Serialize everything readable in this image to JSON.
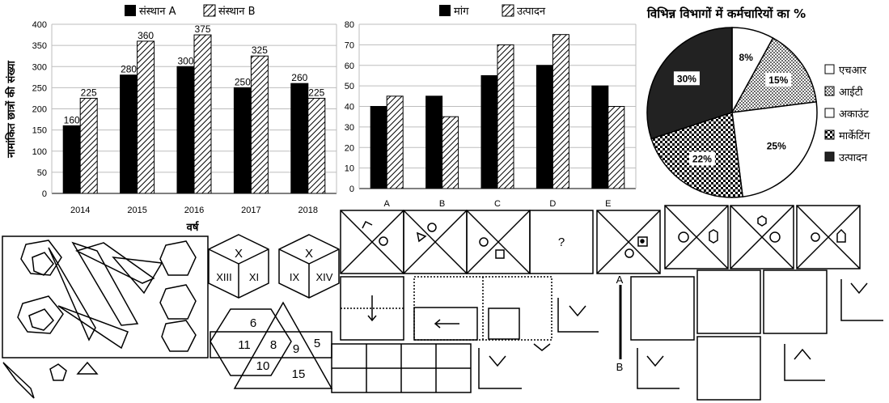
{
  "chart_data": [
    {
      "type": "bar",
      "categories": [
        "2014",
        "2015",
        "2016",
        "2017",
        "2018"
      ],
      "series": [
        {
          "name": "संस्थान A",
          "values": [
            160,
            280,
            300,
            250,
            260
          ]
        },
        {
          "name": "संस्थान B",
          "values": [
            225,
            360,
            375,
            325,
            225
          ]
        }
      ],
      "ylim": [
        0,
        400
      ],
      "yticks": [
        "0",
        "50",
        "100",
        "150",
        "200",
        "250",
        "300",
        "350",
        "400"
      ],
      "ylabel": "नामांकित छात्रों की संख्या",
      "xlabel": "वर्ष",
      "legend": "top"
    },
    {
      "type": "bar",
      "categories": [
        "A",
        "B",
        "C",
        "D",
        "E"
      ],
      "series": [
        {
          "name": "मांग",
          "values": [
            40,
            45,
            55,
            60,
            50
          ]
        },
        {
          "name": "उत्पादन",
          "values": [
            45,
            35,
            70,
            75,
            40
          ]
        }
      ],
      "ylim": [
        0,
        80
      ],
      "yticks": [
        "0",
        "10",
        "20",
        "30",
        "40",
        "50",
        "60",
        "70",
        "80"
      ],
      "legend": "top"
    },
    {
      "type": "pie",
      "title": "विभिन्न विभागों में कर्मचारियों का %",
      "slices": [
        {
          "label": "एचआर",
          "value": 8,
          "text": "8%"
        },
        {
          "label": "आईटी",
          "value": 15,
          "text": "15%"
        },
        {
          "label": "अकाउंट",
          "value": 25,
          "text": "25%"
        },
        {
          "label": "मार्केटिंग",
          "value": 22,
          "text": "22%"
        },
        {
          "label": "उत्पादन",
          "value": 30,
          "text": "30%"
        }
      ],
      "legend": "right"
    }
  ],
  "puzzles": {
    "cube1": [
      "X",
      "XIII",
      "XI"
    ],
    "cube2": [
      "X",
      "IX",
      "XIV"
    ],
    "venn_numbers": [
      "6",
      "11",
      "8",
      "9",
      "5",
      "10",
      "15"
    ],
    "series_question": "?",
    "mirror_labels": [
      "A",
      "B"
    ]
  }
}
